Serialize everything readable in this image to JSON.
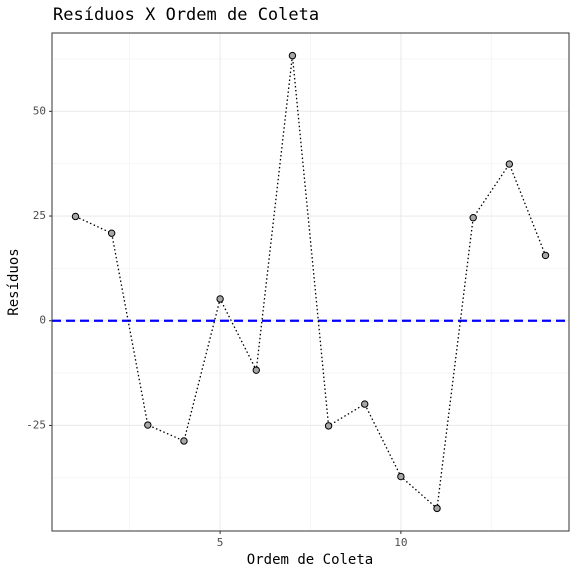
{
  "chart_data": {
    "type": "line",
    "title": "Resíduos X Ordem de Coleta",
    "xlabel": "Ordem de Coleta",
    "ylabel": "Resíduos",
    "x": [
      1,
      2,
      3,
      4,
      5,
      6,
      7,
      8,
      9,
      10,
      11,
      12,
      13,
      14
    ],
    "series": [
      {
        "name": "Resíduos",
        "color": "#000000",
        "marker_fill": "#a6a6a6",
        "values": [
          24.9,
          20.9,
          -24.9,
          -28.7,
          5.2,
          -11.8,
          63.3,
          -25.1,
          -19.9,
          -37.2,
          -44.8,
          24.6,
          37.4,
          15.6
        ]
      }
    ],
    "xlim": [
      0.35,
      14.65
    ],
    "ylim": [
      -50.2,
      68.7
    ],
    "xticks": [
      5,
      10
    ],
    "yticks": [
      -25,
      0,
      25,
      50
    ],
    "xminor": [
      2.5,
      7.5,
      12.5
    ],
    "yminor": [
      -37.5,
      -12.5,
      12.5,
      37.5,
      62.5
    ],
    "grid": true,
    "hline": 0,
    "hline_color": "#0000ff"
  }
}
